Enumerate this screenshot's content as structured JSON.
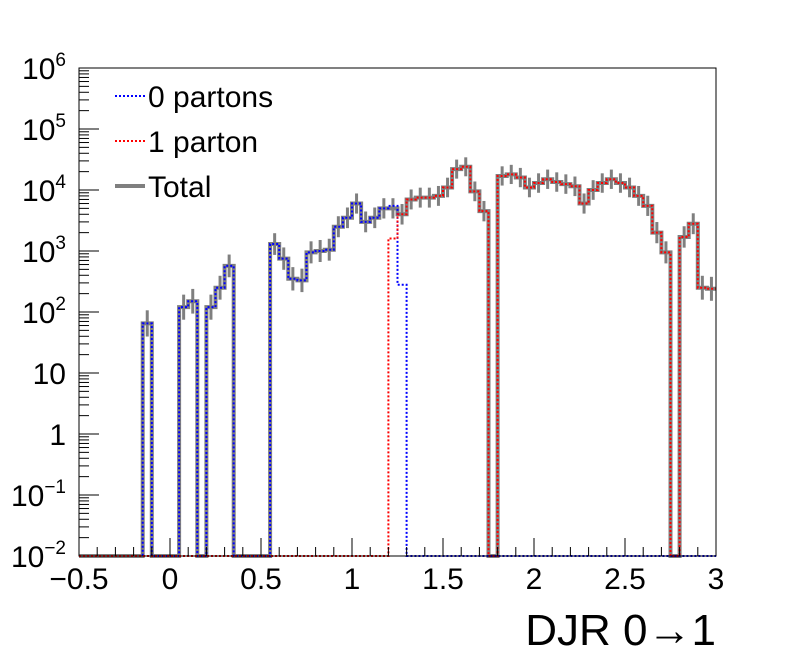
{
  "chart_data": {
    "type": "histogram",
    "xlabel": "DJR 0→1",
    "xlim": [
      -0.5,
      3.0
    ],
    "x_ticks": [
      "−0.5",
      "0",
      "0.5",
      "1",
      "1.5",
      "2",
      "2.5",
      "3"
    ],
    "y_scale": "log",
    "ylim": [
      0.01,
      1000000
    ],
    "y_ticks": [
      {
        "base": "10",
        "exp": "−2"
      },
      {
        "base": "10",
        "exp": "−1"
      },
      {
        "base": "1",
        "exp": ""
      },
      {
        "base": "10",
        "exp": ""
      },
      {
        "base": "10",
        "exp": "2"
      },
      {
        "base": "10",
        "exp": "3"
      },
      {
        "base": "10",
        "exp": "4"
      },
      {
        "base": "10",
        "exp": "5"
      },
      {
        "base": "10",
        "exp": "6"
      }
    ],
    "legend_position": "top-left",
    "bin_width": 0.05,
    "series": [
      {
        "name": "0 partons",
        "color": "#0000ff",
        "style": "dotted",
        "bins": [
          {
            "x": -0.15,
            "y": 65
          },
          {
            "x": 0.05,
            "y": 120
          },
          {
            "x": 0.1,
            "y": 150
          },
          {
            "x": 0.2,
            "y": 120
          },
          {
            "x": 0.25,
            "y": 250
          },
          {
            "x": 0.3,
            "y": 570
          },
          {
            "x": 0.55,
            "y": 1300
          },
          {
            "x": 0.6,
            "y": 750
          },
          {
            "x": 0.65,
            "y": 350
          },
          {
            "x": 0.7,
            "y": 330
          },
          {
            "x": 0.75,
            "y": 950
          },
          {
            "x": 0.8,
            "y": 1000
          },
          {
            "x": 0.85,
            "y": 1050
          },
          {
            "x": 0.9,
            "y": 2500
          },
          {
            "x": 0.95,
            "y": 3500
          },
          {
            "x": 1.0,
            "y": 6000
          },
          {
            "x": 1.05,
            "y": 3000
          },
          {
            "x": 1.1,
            "y": 3500
          },
          {
            "x": 1.15,
            "y": 5000
          },
          {
            "x": 1.2,
            "y": 5500
          },
          {
            "x": 1.25,
            "y": 280
          }
        ]
      },
      {
        "name": "1 parton",
        "color": "#ff0000",
        "style": "dotted",
        "bins": [
          {
            "x": 1.2,
            "y": 1600
          },
          {
            "x": 1.25,
            "y": 4000
          },
          {
            "x": 1.3,
            "y": 7000
          },
          {
            "x": 1.35,
            "y": 7500
          },
          {
            "x": 1.4,
            "y": 7500
          },
          {
            "x": 1.45,
            "y": 8000
          },
          {
            "x": 1.5,
            "y": 11000
          },
          {
            "x": 1.55,
            "y": 22000
          },
          {
            "x": 1.6,
            "y": 24000
          },
          {
            "x": 1.65,
            "y": 9500
          },
          {
            "x": 1.7,
            "y": 4500
          },
          {
            "x": 1.8,
            "y": 17000
          },
          {
            "x": 1.85,
            "y": 18000
          },
          {
            "x": 1.9,
            "y": 16000
          },
          {
            "x": 1.95,
            "y": 11000
          },
          {
            "x": 2.0,
            "y": 13000
          },
          {
            "x": 2.05,
            "y": 15000
          },
          {
            "x": 2.1,
            "y": 13500
          },
          {
            "x": 2.15,
            "y": 12500
          },
          {
            "x": 2.2,
            "y": 11500
          },
          {
            "x": 2.25,
            "y": 6000
          },
          {
            "x": 2.3,
            "y": 10000
          },
          {
            "x": 2.35,
            "y": 13000
          },
          {
            "x": 2.4,
            "y": 15000
          },
          {
            "x": 2.45,
            "y": 13000
          },
          {
            "x": 2.5,
            "y": 11000
          },
          {
            "x": 2.55,
            "y": 8000
          },
          {
            "x": 2.6,
            "y": 5500
          },
          {
            "x": 2.65,
            "y": 2000
          },
          {
            "x": 2.7,
            "y": 950
          },
          {
            "x": 2.8,
            "y": 1700
          },
          {
            "x": 2.85,
            "y": 2800
          },
          {
            "x": 2.9,
            "y": 250
          },
          {
            "x": 2.95,
            "y": 240
          }
        ]
      },
      {
        "name": "Total",
        "color": "#7f7f7f",
        "style": "solid",
        "bins": [
          {
            "x": -0.15,
            "y": 65
          },
          {
            "x": 0.05,
            "y": 120
          },
          {
            "x": 0.1,
            "y": 150
          },
          {
            "x": 0.2,
            "y": 120
          },
          {
            "x": 0.25,
            "y": 250
          },
          {
            "x": 0.3,
            "y": 570
          },
          {
            "x": 0.55,
            "y": 1300
          },
          {
            "x": 0.6,
            "y": 750
          },
          {
            "x": 0.65,
            "y": 350
          },
          {
            "x": 0.7,
            "y": 330
          },
          {
            "x": 0.75,
            "y": 950
          },
          {
            "x": 0.8,
            "y": 1000
          },
          {
            "x": 0.85,
            "y": 1050
          },
          {
            "x": 0.9,
            "y": 2500
          },
          {
            "x": 0.95,
            "y": 3500
          },
          {
            "x": 1.0,
            "y": 6000
          },
          {
            "x": 1.05,
            "y": 3000
          },
          {
            "x": 1.1,
            "y": 3500
          },
          {
            "x": 1.15,
            "y": 5000
          },
          {
            "x": 1.2,
            "y": 5000
          },
          {
            "x": 1.25,
            "y": 4000
          },
          {
            "x": 1.3,
            "y": 7000
          },
          {
            "x": 1.35,
            "y": 7500
          },
          {
            "x": 1.4,
            "y": 7500
          },
          {
            "x": 1.45,
            "y": 8000
          },
          {
            "x": 1.5,
            "y": 11000
          },
          {
            "x": 1.55,
            "y": 22000
          },
          {
            "x": 1.6,
            "y": 24000
          },
          {
            "x": 1.65,
            "y": 9500
          },
          {
            "x": 1.7,
            "y": 4500
          },
          {
            "x": 1.8,
            "y": 17000
          },
          {
            "x": 1.85,
            "y": 18000
          },
          {
            "x": 1.9,
            "y": 16000
          },
          {
            "x": 1.95,
            "y": 11000
          },
          {
            "x": 2.0,
            "y": 13000
          },
          {
            "x": 2.05,
            "y": 15000
          },
          {
            "x": 2.1,
            "y": 13500
          },
          {
            "x": 2.15,
            "y": 12500
          },
          {
            "x": 2.2,
            "y": 11500
          },
          {
            "x": 2.25,
            "y": 6000
          },
          {
            "x": 2.3,
            "y": 10000
          },
          {
            "x": 2.35,
            "y": 13000
          },
          {
            "x": 2.4,
            "y": 15000
          },
          {
            "x": 2.45,
            "y": 13000
          },
          {
            "x": 2.5,
            "y": 11000
          },
          {
            "x": 2.55,
            "y": 8000
          },
          {
            "x": 2.6,
            "y": 5500
          },
          {
            "x": 2.65,
            "y": 2000
          },
          {
            "x": 2.7,
            "y": 950
          },
          {
            "x": 2.8,
            "y": 1700
          },
          {
            "x": 2.85,
            "y": 2800
          },
          {
            "x": 2.9,
            "y": 250
          },
          {
            "x": 2.95,
            "y": 240
          }
        ]
      }
    ]
  }
}
